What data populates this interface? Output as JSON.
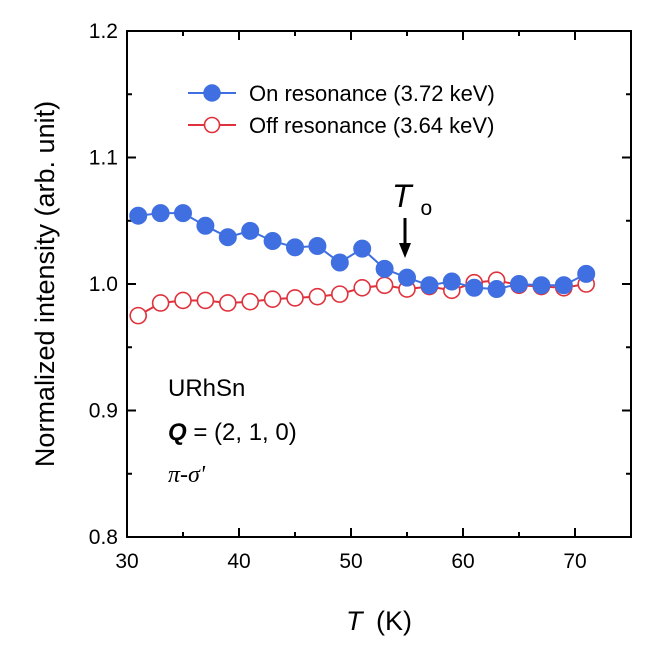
{
  "chart_data": {
    "type": "line",
    "title": "",
    "xlabel_symbol": "T",
    "xlabel_unit": "(K)",
    "ylabel": "Normalized intensity (arb. unit)",
    "xlim": [
      30,
      75
    ],
    "ylim": [
      0.8,
      1.2
    ],
    "x_ticks": [
      30,
      40,
      50,
      60,
      70
    ],
    "x_tick_labels": [
      "30",
      "40",
      "50",
      "60",
      "70"
    ],
    "y_ticks": [
      0.8,
      0.9,
      1.0,
      1.1,
      1.2
    ],
    "y_tick_labels": [
      "0.8",
      "0.9",
      "1.0",
      "1.1",
      "1.2"
    ],
    "grid": false,
    "legend_position": "top-right",
    "series": [
      {
        "name": "On resonance (3.72 keV)",
        "color": "#3f6fe0",
        "marker": "filled-circle",
        "x": [
          31,
          33,
          35,
          37,
          39,
          41,
          43,
          45,
          47,
          49,
          51,
          53,
          55,
          57,
          59,
          61,
          63,
          65,
          67,
          69,
          71
        ],
        "y": [
          1.054,
          1.056,
          1.056,
          1.046,
          1.037,
          1.042,
          1.034,
          1.029,
          1.03,
          1.017,
          1.028,
          1.012,
          1.005,
          0.999,
          1.002,
          0.997,
          0.996,
          1.0,
          0.999,
          0.999,
          1.008
        ]
      },
      {
        "name": "Off resonance (3.64 keV)",
        "color": "#e0323c",
        "marker": "open-circle",
        "x": [
          31,
          33,
          35,
          37,
          39,
          41,
          43,
          45,
          47,
          49,
          51,
          53,
          55,
          57,
          59,
          61,
          63,
          65,
          67,
          69,
          71
        ],
        "y": [
          0.975,
          0.985,
          0.987,
          0.987,
          0.985,
          0.986,
          0.988,
          0.989,
          0.99,
          0.992,
          0.997,
          0.999,
          0.996,
          0.998,
          0.995,
          1.001,
          1.003,
          0.999,
          0.998,
          0.997,
          1.0
        ]
      }
    ],
    "annotations": {
      "transition_symbol": "T",
      "transition_subscript": "o",
      "transition_x": 55,
      "sample_name": "URhSn",
      "q_symbol": "Q",
      "q_value": " = (2, 1, 0)",
      "polarization": "π-σ'"
    }
  }
}
